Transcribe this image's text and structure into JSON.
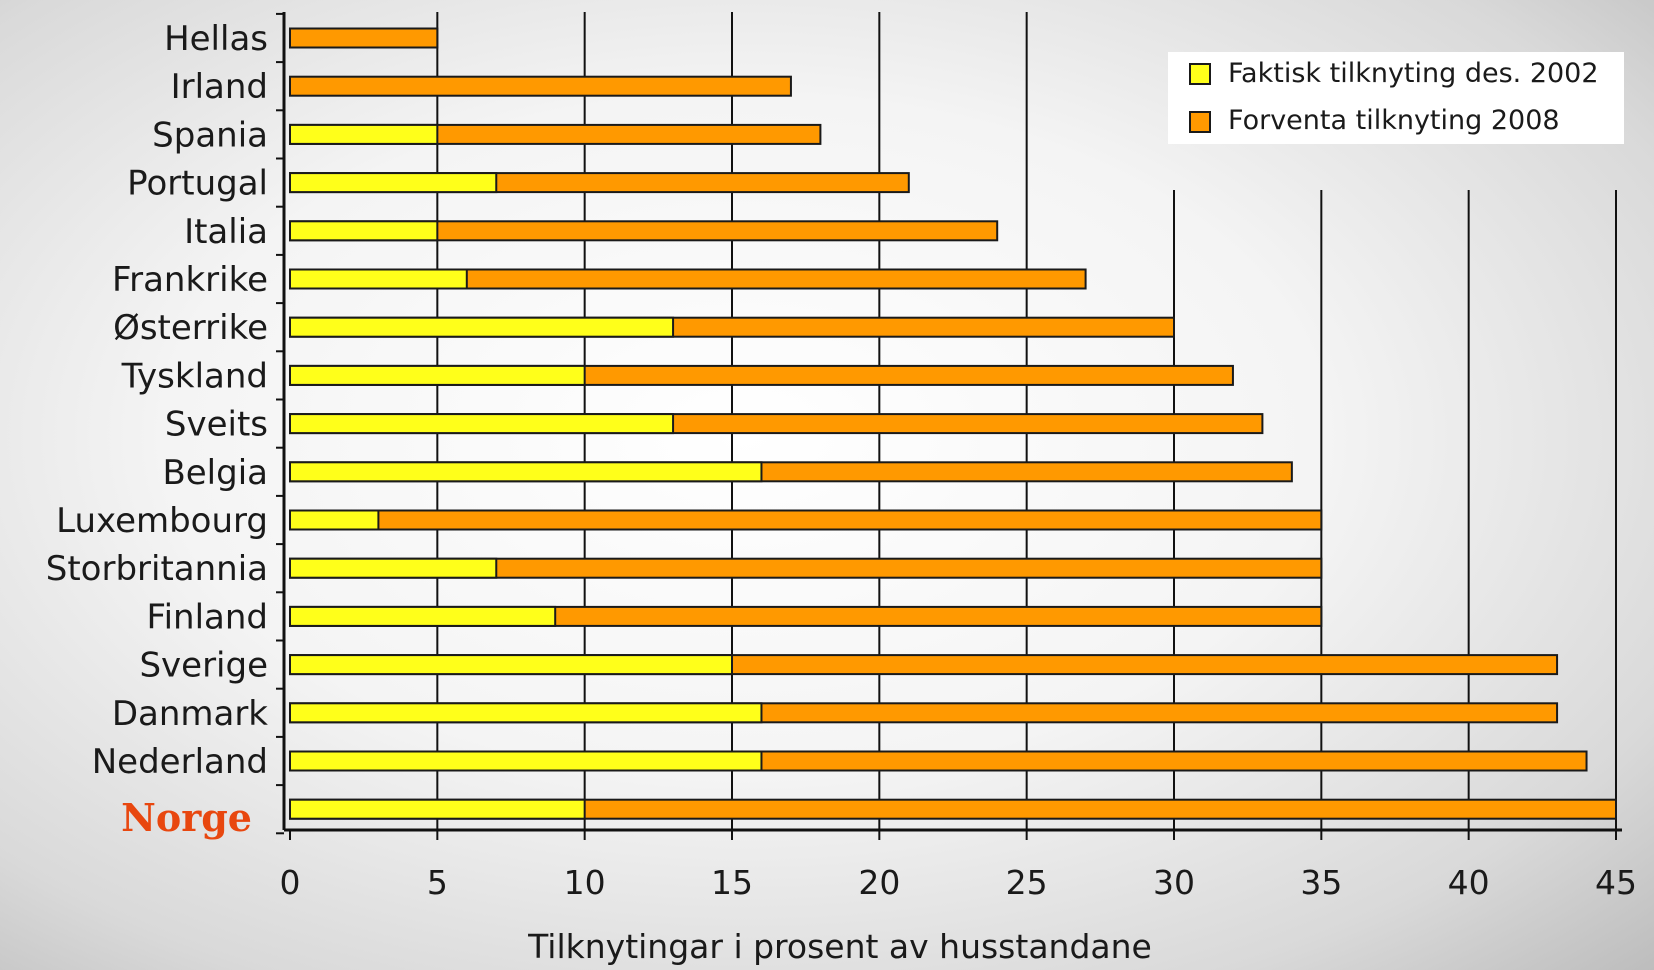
{
  "chart_data": {
    "type": "bar",
    "orientation": "horizontal",
    "categories": [
      "Hellas",
      "Irland",
      "Spania",
      "Portugal",
      "Italia",
      "Frankrike",
      "Østerrike",
      "Tyskland",
      "Sveits",
      "Belgia",
      "Luxembourg",
      "Storbritannia",
      "Finland",
      "Sverige",
      "Danmark",
      "Nederland",
      "Norge"
    ],
    "highlight_category": "Norge",
    "highlight_color": "#e8470f",
    "series": [
      {
        "name": "Faktisk tilknyting des. 2002",
        "color": "#ffff1a",
        "values": [
          0,
          0,
          5,
          7,
          5,
          6,
          13,
          10,
          13,
          16,
          3,
          7,
          9,
          15,
          16,
          16,
          10
        ]
      },
      {
        "name": "Forventa tilknyting 2008",
        "color": "#ff9900",
        "values": [
          5,
          17,
          18,
          21,
          24,
          27,
          30,
          32,
          33,
          34,
          35,
          35,
          35,
          43,
          43,
          44,
          45
        ]
      }
    ],
    "xlabel": "Tilknytingar i prosent av husstandane",
    "ylabel": "",
    "xlim": [
      0,
      45
    ],
    "xticks": [
      "0",
      "5",
      "10",
      "15",
      "20",
      "25",
      "30",
      "35",
      "40",
      "45"
    ],
    "grid": "vertical",
    "legend_position": "top-right"
  }
}
